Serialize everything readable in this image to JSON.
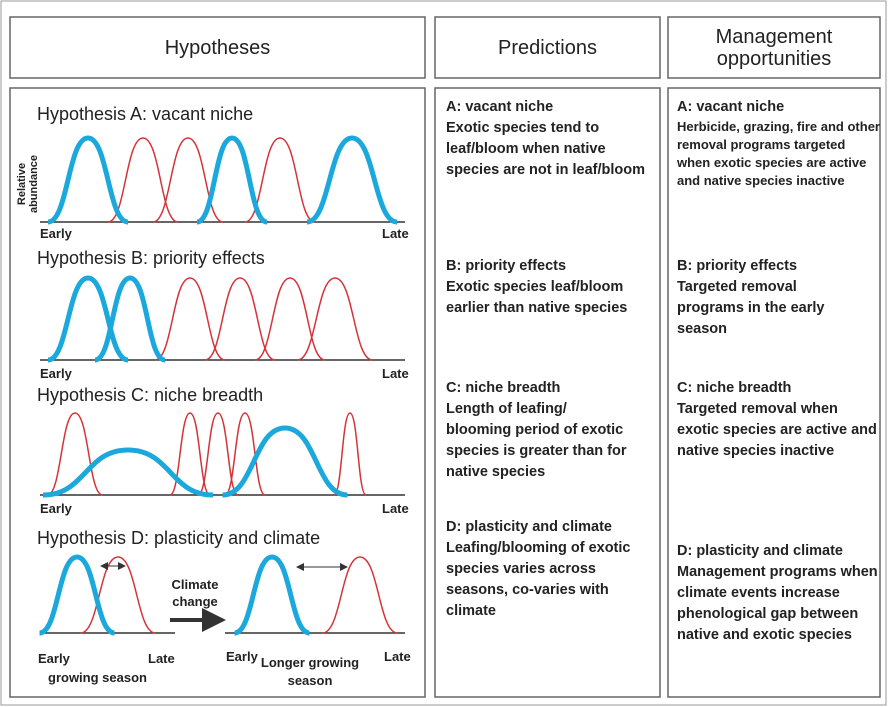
{
  "headers": [
    "Hypotheses",
    "Predictions",
    "Management opportunities"
  ],
  "hypotheses": [
    {
      "title": "Hypothesis A: vacant niche",
      "y_axis_label": "Relative abundance",
      "x_start": "Early",
      "x_end": "Late"
    },
    {
      "title": "Hypothesis B: priority effects",
      "x_start": "Early",
      "x_end": "Late"
    },
    {
      "title": "Hypothesis C: niche breadth",
      "x_start": "Early",
      "x_end": "Late"
    },
    {
      "title": "Hypothesis D: plasticity and climate",
      "x_start": "Early",
      "x_end": "Late",
      "x_caption": "growing season",
      "arrow_label": "Climate change",
      "x2_start": "Early",
      "x2_end": "Late",
      "x2_caption": "Longer growing season"
    }
  ],
  "predictions": [
    {
      "heading": "A: vacant niche",
      "text": "Exotic species tend to leaf/bloom when native species are not in leaf/bloom"
    },
    {
      "heading": "B: priority effects",
      "text": "Exotic species leaf/bloom earlier than native species"
    },
    {
      "heading": "C: niche breadth",
      "text": "Length of leafing/ blooming period of exotic species is greater than for native species"
    },
    {
      "heading": "D: plasticity and climate",
      "text": "Leafing/blooming of exotic species varies across seasons, co-varies with climate"
    }
  ],
  "management": [
    {
      "heading": "A: vacant niche",
      "text": "Herbicide, grazing, fire and other removal programs targeted when exotic species are active and native species inactive"
    },
    {
      "heading": "B: priority effects",
      "text": "Targeted removal programs in the early season"
    },
    {
      "heading": "C: niche breadth",
      "text": "Targeted removal when exotic species are active and native species inactive"
    },
    {
      "heading": "D: plasticity and climate",
      "text": "Management programs when climate events increase phenological gap between native and exotic species"
    }
  ]
}
